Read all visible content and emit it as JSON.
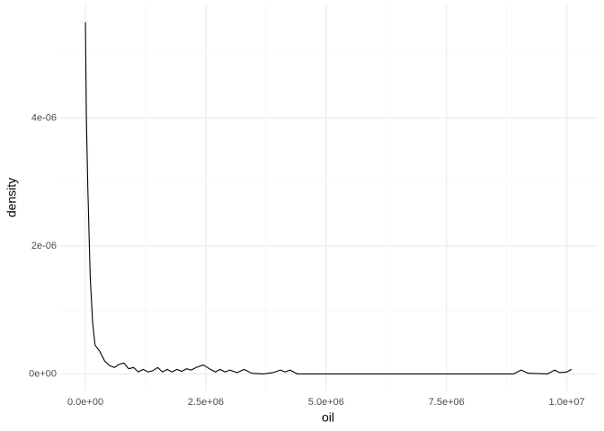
{
  "chart_data": {
    "type": "line",
    "x_label": "oil",
    "y_label": "density",
    "x": [
      0,
      20000,
      50000,
      100000,
      150000,
      200000,
      300000,
      400000,
      500000,
      600000,
      700000,
      800000,
      900000,
      1000000,
      1100000,
      1200000,
      1300000,
      1400000,
      1500000,
      1600000,
      1700000,
      1800000,
      1900000,
      2000000,
      2100000,
      2200000,
      2300000,
      2450000,
      2600000,
      2700000,
      2800000,
      2900000,
      3000000,
      3150000,
      3300000,
      3450000,
      3700000,
      3900000,
      4050000,
      4150000,
      4250000,
      4400000,
      8900000,
      9050000,
      9200000,
      9600000,
      9750000,
      9850000,
      10000000,
      10100000
    ],
    "values": [
      5.5e-06,
      4e-06,
      2.9e-06,
      1.5e-06,
      8e-07,
      4.5e-07,
      3.5e-07,
      2e-07,
      1.3e-07,
      1e-07,
      1.5e-07,
      1.7e-07,
      8e-08,
      1e-07,
      3e-08,
      7e-08,
      3e-08,
      5e-08,
      1e-07,
      3e-08,
      7e-08,
      3e-08,
      7e-08,
      4e-08,
      8e-08,
      6e-08,
      1e-07,
      1.4e-07,
      7e-08,
      3e-08,
      7e-08,
      3e-08,
      6e-08,
      2e-08,
      7e-08,
      1e-08,
      0,
      2e-08,
      6e-08,
      3e-08,
      6e-08,
      0,
      0,
      6e-08,
      1e-08,
      0,
      6e-08,
      2e-08,
      3e-08,
      7e-08
    ],
    "color": "#000000",
    "xlim": [
      -505000,
      10605000
    ],
    "ylim": [
      -2.75e-07,
      5.775e-06
    ],
    "xticks": [
      {
        "value": 0,
        "label": "0.0e+00"
      },
      {
        "value": 2500000,
        "label": "2.5e+06"
      },
      {
        "value": 5000000,
        "label": "5.0e+06"
      },
      {
        "value": 7500000,
        "label": "7.5e+06"
      },
      {
        "value": 10000000,
        "label": "1.0e+07"
      }
    ],
    "yticks": [
      {
        "value": 0,
        "label": "0e+00"
      },
      {
        "value": 2e-06,
        "label": "2e-06"
      },
      {
        "value": 4e-06,
        "label": "4e-06"
      }
    ],
    "minor_xticks": [
      1250000,
      3750000,
      6250000,
      8750000
    ],
    "minor_yticks": [
      1e-06,
      3e-06,
      5e-06
    ],
    "grid": true
  }
}
